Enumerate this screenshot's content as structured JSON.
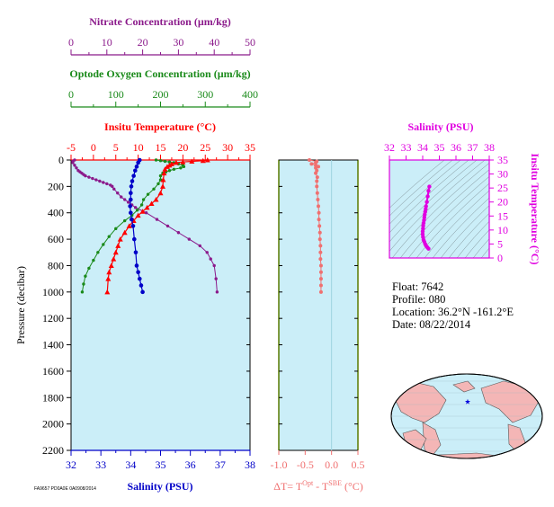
{
  "colors": {
    "nitrate": "#8b1a8b",
    "oxygen": "#1a8a1a",
    "temperature": "#ff0000",
    "salinity": "#0000c8",
    "delta_t": "#f07070",
    "ts_axis": "#e000e0",
    "panel_bg": "#cbeef8",
    "land": "#f4b6b6",
    "ocean": "#cbeef8"
  },
  "info": {
    "float": "Float:  7642",
    "profile": "Profile:  080",
    "location": "Location:  36.2°N  -161.2°E",
    "date": "Date:  08/22/2014"
  },
  "map": {
    "marker": "star",
    "marker_color": "#0000dd"
  },
  "footnote": "FA9657 PD0A0E 0A0908/2014",
  "chart_data": [
    {
      "type": "line",
      "panel": "main profile",
      "ylabel": "Pressure (decibar)",
      "ylim": [
        0,
        2200
      ],
      "y_inverted": true,
      "y_ticks": [
        0,
        200,
        400,
        600,
        800,
        1000,
        1200,
        1400,
        1600,
        1800,
        2000,
        2200
      ],
      "grid": false,
      "series": [
        {
          "name": "Nitrate Concentration (µm/kg)",
          "axis_label": "Nitrate Concentration (µm/kg)",
          "xlim": [
            0,
            50
          ],
          "x_ticks": [
            0,
            10,
            20,
            30,
            40,
            50
          ],
          "marker": "circle",
          "x": [
            1,
            0.5,
            0.5,
            1,
            1.5,
            2,
            2.5,
            3,
            3.5,
            4,
            5,
            6,
            7,
            8,
            9,
            10,
            11,
            11.5,
            12,
            13,
            14,
            15,
            16,
            17,
            18,
            21,
            24,
            27,
            30,
            33,
            36,
            38,
            39,
            40,
            40.5,
            40.8
          ],
          "y": [
            0,
            10,
            20,
            40,
            60,
            80,
            90,
            100,
            110,
            120,
            130,
            140,
            150,
            160,
            170,
            180,
            190,
            200,
            220,
            250,
            280,
            300,
            320,
            340,
            360,
            400,
            450,
            500,
            550,
            600,
            650,
            700,
            750,
            800,
            900,
            1000
          ]
        },
        {
          "name": "Optode Oxygen Concentration (µm/kg)",
          "axis_label": "Optode Oxygen Concentration (µm/kg)",
          "xlim": [
            0,
            400
          ],
          "x_ticks": [
            0,
            100,
            200,
            300,
            400
          ],
          "marker": "circle",
          "x": [
            190,
            200,
            210,
            220,
            230,
            240,
            250,
            252,
            245,
            230,
            220,
            212,
            205,
            200,
            200,
            195,
            185,
            172,
            162,
            158,
            148,
            136,
            120,
            100,
            85,
            72,
            60,
            50,
            40,
            32,
            28,
            25
          ],
          "y": [
            0,
            5,
            10,
            15,
            20,
            30,
            40,
            50,
            60,
            70,
            80,
            90,
            100,
            120,
            150,
            180,
            220,
            260,
            300,
            340,
            380,
            420,
            460,
            520,
            580,
            640,
            700,
            760,
            820,
            880,
            940,
            1000
          ]
        },
        {
          "name": "Insitu Temperature (°C)",
          "axis_label": "Insitu Temperature (°C)",
          "xlim": [
            -5,
            35
          ],
          "x_ticks": [
            -5,
            0,
            5,
            10,
            15,
            20,
            25,
            30,
            35
          ],
          "marker": "triangle",
          "x": [
            25.5,
            24.5,
            22,
            20,
            18.5,
            17.5,
            17,
            16.5,
            16,
            15.8,
            15.6,
            15.5,
            15,
            14,
            13,
            12,
            11,
            10,
            9,
            8,
            7,
            6,
            5.5,
            5,
            4.5,
            4,
            3.5,
            3.3,
            3.1
          ],
          "y": [
            0,
            5,
            10,
            15,
            20,
            30,
            40,
            50,
            70,
            100,
            150,
            200,
            250,
            300,
            330,
            360,
            390,
            420,
            460,
            500,
            550,
            600,
            650,
            700,
            750,
            800,
            850,
            900,
            1000
          ]
        },
        {
          "name": "Salinity (PSU)",
          "axis_label": "Salinity (PSU)",
          "xlim": [
            32,
            38
          ],
          "x_ticks": [
            32,
            33,
            34,
            35,
            36,
            37,
            38
          ],
          "marker": "circle",
          "x": [
            34.3,
            34.25,
            34.2,
            34.15,
            34.1,
            34.05,
            34.02,
            34.0,
            34.0,
            33.98,
            34.0,
            34.03,
            34.08,
            34.12,
            34.17,
            34.2,
            34.25,
            34.3,
            34.35,
            34.4
          ],
          "y": [
            0,
            20,
            50,
            80,
            120,
            160,
            200,
            250,
            300,
            350,
            400,
            450,
            500,
            600,
            700,
            800,
            850,
            900,
            950,
            1000
          ]
        }
      ]
    },
    {
      "type": "scatter",
      "panel": "delta T",
      "xlabel": "ΔT= T",
      "xlabel_sup1": "Opt",
      "xlabel_mid": " - T",
      "xlabel_sup2": "SBE",
      "xlabel_unit": " (°C)",
      "xlim": [
        -1.0,
        0.5
      ],
      "x_ticks": [
        -1.0,
        -0.5,
        0.0,
        0.5
      ],
      "x_tick_labels": [
        "-1.0",
        "-0.5",
        "0.0",
        "0.5"
      ],
      "ylim": [
        0,
        2200
      ],
      "y": [
        0,
        10,
        20,
        30,
        40,
        50,
        60,
        80,
        100,
        130,
        160,
        200,
        250,
        300,
        350,
        400,
        450,
        500,
        550,
        600,
        650,
        700,
        750,
        800,
        850,
        900,
        950,
        1000
      ],
      "x": [
        -0.42,
        -0.28,
        -0.3,
        -0.38,
        -0.3,
        -0.25,
        -0.3,
        -0.28,
        -0.3,
        -0.27,
        -0.28,
        -0.28,
        -0.27,
        -0.26,
        -0.25,
        -0.24,
        -0.24,
        -0.23,
        -0.22,
        -0.22,
        -0.21,
        -0.21,
        -0.21,
        -0.2,
        -0.2,
        -0.2,
        -0.2,
        -0.2
      ]
    },
    {
      "type": "scatter",
      "panel": "T-S diagram",
      "title": "Salinity (PSU)",
      "ylabel": "Insitu Temperature (°C)",
      "xlim": [
        32,
        38
      ],
      "x_ticks": [
        32,
        33,
        34,
        35,
        36,
        37,
        38
      ],
      "ylim": [
        0,
        35
      ],
      "y_ticks": [
        0,
        5,
        10,
        15,
        20,
        25,
        30,
        35
      ],
      "background": "density contours",
      "x": [
        34.4,
        34.35,
        34.3,
        34.25,
        34.2,
        34.18,
        34.15,
        34.12,
        34.1,
        34.08,
        34.05,
        34.03,
        34.02,
        34.0,
        34.0,
        34.02,
        34.05,
        34.1,
        34.15,
        34.2,
        34.28,
        34.35
      ],
      "y": [
        25.5,
        24,
        22,
        20,
        18.5,
        17.5,
        16.5,
        15.5,
        14.5,
        13.5,
        12.5,
        11.5,
        10.5,
        9.5,
        8.5,
        7.5,
        6.5,
        5.8,
        5.0,
        4.4,
        3.8,
        3.3
      ]
    }
  ]
}
